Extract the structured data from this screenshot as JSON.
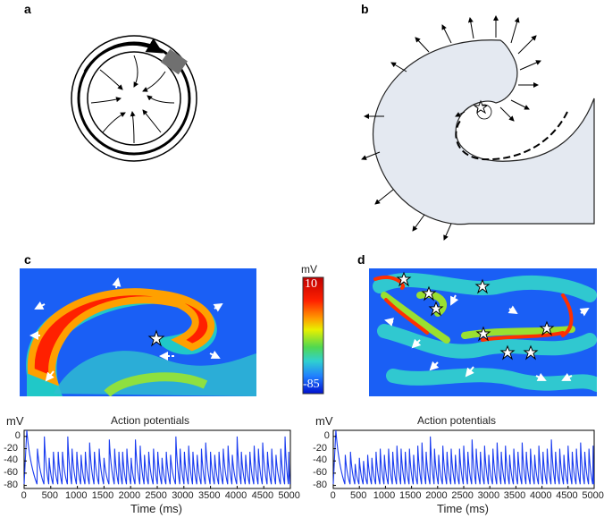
{
  "panels": {
    "a": "a",
    "b": "b",
    "c": "c",
    "d": "d"
  },
  "colorbar": {
    "unit": "mV",
    "max": "10",
    "min": "-85"
  },
  "colors": {
    "trace": "#1a3cf0",
    "tissue": "#e4e9f1"
  },
  "chart_data": [
    {
      "type": "line",
      "title": "Action potentials",
      "ylabel": "mV",
      "xlabel": "Time (ms)",
      "xlim": [
        0,
        5000
      ],
      "ylim": [
        -85,
        10
      ],
      "xticks": [
        "0",
        "500",
        "1000",
        "1500",
        "2000",
        "2500",
        "3000",
        "3500",
        "4000",
        "4500",
        "5000"
      ],
      "yticks": [
        "0",
        "-20",
        "-40",
        "-60",
        "-80"
      ],
      "resting": -78,
      "peaks": [
        [
          50,
          10
        ],
        [
          250,
          -20
        ],
        [
          380,
          0
        ],
        [
          470,
          -35
        ],
        [
          550,
          -25
        ],
        [
          640,
          -25
        ],
        [
          720,
          -25
        ],
        [
          820,
          0
        ],
        [
          900,
          -20
        ],
        [
          990,
          -25
        ],
        [
          1070,
          -30
        ],
        [
          1150,
          -25
        ],
        [
          1230,
          -10
        ],
        [
          1320,
          -25
        ],
        [
          1410,
          -20
        ],
        [
          1500,
          -35
        ],
        [
          1600,
          -5
        ],
        [
          1700,
          -20
        ],
        [
          1780,
          -25
        ],
        [
          1850,
          -25
        ],
        [
          1930,
          -20
        ],
        [
          2010,
          -35
        ],
        [
          2090,
          -5
        ],
        [
          2180,
          -15
        ],
        [
          2260,
          -30
        ],
        [
          2340,
          -25
        ],
        [
          2430,
          -20
        ],
        [
          2510,
          -25
        ],
        [
          2590,
          -35
        ],
        [
          2670,
          -25
        ],
        [
          2750,
          -30
        ],
        [
          2850,
          0
        ],
        [
          2930,
          -20
        ],
        [
          3010,
          -25
        ],
        [
          3090,
          -15
        ],
        [
          3170,
          -25
        ],
        [
          3250,
          -30
        ],
        [
          3330,
          -20
        ],
        [
          3410,
          -10
        ],
        [
          3500,
          -25
        ],
        [
          3580,
          -30
        ],
        [
          3660,
          -25
        ],
        [
          3740,
          -20
        ],
        [
          3830,
          -15
        ],
        [
          3910,
          -30
        ],
        [
          4000,
          0
        ],
        [
          4080,
          -25
        ],
        [
          4160,
          -30
        ],
        [
          4240,
          -25
        ],
        [
          4320,
          -15
        ],
        [
          4400,
          -20
        ],
        [
          4480,
          -10
        ],
        [
          4570,
          -25
        ],
        [
          4650,
          -20
        ],
        [
          4730,
          -30
        ],
        [
          4820,
          -20
        ],
        [
          4900,
          0
        ],
        [
          4970,
          -25
        ]
      ]
    },
    {
      "type": "line",
      "title": "Action potentials",
      "ylabel": "mV",
      "xlabel": "Time (ms)",
      "xlim": [
        0,
        5000
      ],
      "ylim": [
        -85,
        10
      ],
      "xticks": [
        "0",
        "500",
        "1000",
        "1500",
        "2000",
        "2500",
        "3000",
        "3500",
        "4000",
        "4500",
        "5000"
      ],
      "yticks": [
        "0",
        "-20",
        "-40",
        "-60",
        "-80"
      ],
      "resting": -78,
      "peaks": [
        [
          50,
          10
        ],
        [
          230,
          -30
        ],
        [
          330,
          -25
        ],
        [
          420,
          -45
        ],
        [
          500,
          -35
        ],
        [
          580,
          -40
        ],
        [
          660,
          -30
        ],
        [
          740,
          -35
        ],
        [
          820,
          -25
        ],
        [
          900,
          -20
        ],
        [
          980,
          -30
        ],
        [
          1060,
          -20
        ],
        [
          1140,
          -25
        ],
        [
          1220,
          -15
        ],
        [
          1300,
          -20
        ],
        [
          1380,
          -25
        ],
        [
          1460,
          -20
        ],
        [
          1540,
          -30
        ],
        [
          1620,
          -15
        ],
        [
          1700,
          -10
        ],
        [
          1780,
          -25
        ],
        [
          1860,
          0
        ],
        [
          1940,
          -20
        ],
        [
          2020,
          -30
        ],
        [
          2100,
          -15
        ],
        [
          2180,
          -25
        ],
        [
          2260,
          -20
        ],
        [
          2340,
          -30
        ],
        [
          2420,
          -20
        ],
        [
          2500,
          -15
        ],
        [
          2580,
          -25
        ],
        [
          2660,
          -5
        ],
        [
          2740,
          -20
        ],
        [
          2820,
          -25
        ],
        [
          2900,
          -15
        ],
        [
          2980,
          -30
        ],
        [
          3060,
          -20
        ],
        [
          3140,
          -10
        ],
        [
          3220,
          -25
        ],
        [
          3300,
          -15
        ],
        [
          3380,
          -30
        ],
        [
          3460,
          -20
        ],
        [
          3540,
          -25
        ],
        [
          3620,
          -10
        ],
        [
          3700,
          -25
        ],
        [
          3780,
          -20
        ],
        [
          3860,
          -30
        ],
        [
          3940,
          -15
        ],
        [
          4020,
          -25
        ],
        [
          4100,
          -20
        ],
        [
          4180,
          -5
        ],
        [
          4260,
          -25
        ],
        [
          4340,
          -20
        ],
        [
          4420,
          -30
        ],
        [
          4500,
          -15
        ],
        [
          4580,
          -25
        ],
        [
          4660,
          -20
        ],
        [
          4740,
          -10
        ],
        [
          4820,
          -25
        ],
        [
          4900,
          -20
        ],
        [
          4980,
          -15
        ]
      ]
    }
  ]
}
